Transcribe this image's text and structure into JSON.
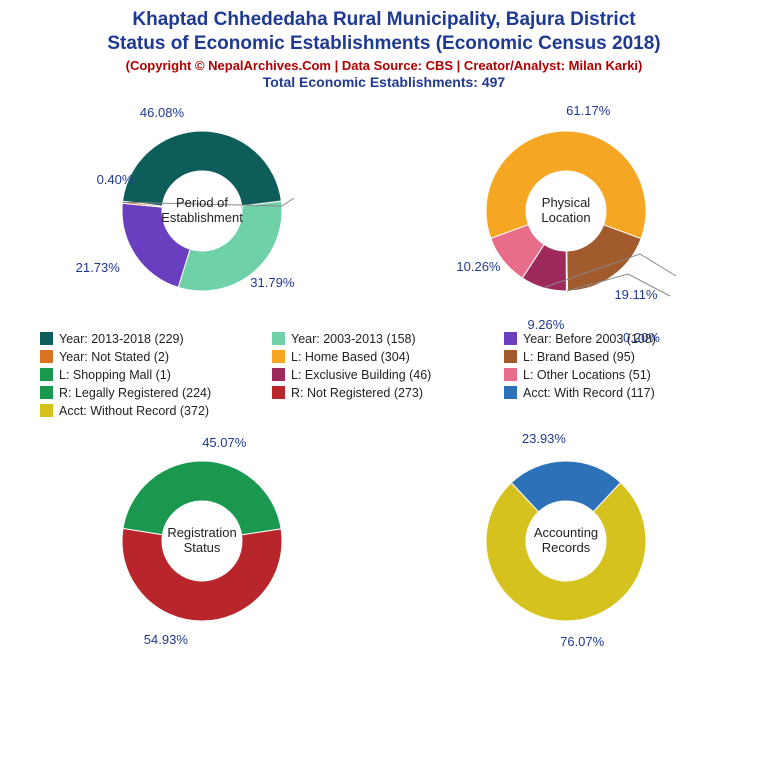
{
  "header": {
    "title1": "Khaptad Chhededaha Rural Municipality, Bajura District",
    "title2": "Status of Economic Establishments (Economic Census 2018)",
    "copyright": "(Copyright © NepalArchives.Com | Data Source: CBS | Creator/Analyst: Milan Karki)",
    "total": "Total Economic Establishments: 497",
    "title_color": "#1f3a93",
    "copyright_color": "#b00000"
  },
  "donut_style": {
    "outer_r": 80,
    "inner_r": 40,
    "label_fontsize": 13,
    "label_color": "#1f3a93",
    "center_fontsize": 13,
    "center_color": "#222222"
  },
  "charts": {
    "period": {
      "center": "Period of\nEstablishment",
      "slices": [
        {
          "pct": 46.08,
          "color": "#0d5d5b",
          "label": "46.08%"
        },
        {
          "pct": 31.79,
          "color": "#6fd1a8",
          "label": "31.79%"
        },
        {
          "pct": 21.73,
          "color": "#6a3fbf",
          "label": "21.73%"
        },
        {
          "pct": 0.4,
          "color": "#d97324",
          "label": "0.40%"
        }
      ]
    },
    "location": {
      "center": "Physical\nLocation",
      "slices": [
        {
          "pct": 61.17,
          "color": "#f5a623",
          "label": "61.17%"
        },
        {
          "pct": 19.11,
          "color": "#a05a2c",
          "label": "19.11%"
        },
        {
          "pct": 0.2,
          "color": "#1a9850",
          "label": "0.20%"
        },
        {
          "pct": 9.26,
          "color": "#9e2a5c",
          "label": "9.26%"
        },
        {
          "pct": 10.26,
          "color": "#e86d8a",
          "label": "10.26%"
        }
      ]
    },
    "registration": {
      "center": "Registration\nStatus",
      "slices": [
        {
          "pct": 45.07,
          "color": "#1a9850",
          "label": "45.07%"
        },
        {
          "pct": 54.93,
          "color": "#b8262b",
          "label": "54.93%"
        }
      ]
    },
    "accounting": {
      "center": "Accounting\nRecords",
      "slices": [
        {
          "pct": 76.07,
          "color": "#d6c21f",
          "label": "76.07%"
        },
        {
          "pct": 23.93,
          "color": "#2d72b8",
          "label": "23.93%"
        }
      ]
    }
  },
  "legend": [
    {
      "color": "#0d5d5b",
      "text": "Year: 2013-2018 (229)"
    },
    {
      "color": "#6fd1a8",
      "text": "Year: 2003-2013 (158)"
    },
    {
      "color": "#6a3fbf",
      "text": "Year: Before 2003 (108)"
    },
    {
      "color": "#d97324",
      "text": "Year: Not Stated (2)"
    },
    {
      "color": "#f5a623",
      "text": "L: Home Based (304)"
    },
    {
      "color": "#a05a2c",
      "text": "L: Brand Based (95)"
    },
    {
      "color": "#1a9850",
      "text": "L: Shopping Mall (1)"
    },
    {
      "color": "#9e2a5c",
      "text": "L: Exclusive Building (46)"
    },
    {
      "color": "#e86d8a",
      "text": "L: Other Locations (51)"
    },
    {
      "color": "#1a9850",
      "text": "R: Legally Registered (224)"
    },
    {
      "color": "#b8262b",
      "text": "R: Not Registered (273)"
    },
    {
      "color": "#2d72b8",
      "text": "Acct: With Record (117)"
    },
    {
      "color": "#d6c21f",
      "text": "Acct: Without Record (372)"
    }
  ]
}
